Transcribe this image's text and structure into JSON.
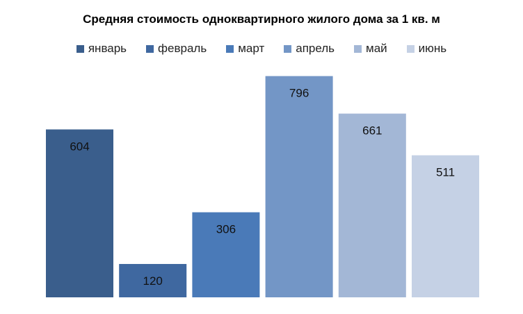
{
  "chart_data": {
    "type": "bar",
    "title": "Средняя стоимость одноквартирного  жилого дома за 1 кв. м",
    "series": [
      {
        "name": "январь",
        "value": 604,
        "color": "#3A5E8C"
      },
      {
        "name": "февраль",
        "value": 120,
        "color": "#3F68A0"
      },
      {
        "name": "март",
        "value": 306,
        "color": "#4A7AB8"
      },
      {
        "name": "апрель",
        "value": 796,
        "color": "#7396C6"
      },
      {
        "name": "май",
        "value": 661,
        "color": "#A3B7D6"
      },
      {
        "name": "июнь",
        "value": 511,
        "color": "#C5D1E5"
      }
    ],
    "ylim": [
      0,
      900
    ],
    "xlabel": "",
    "ylabel": "",
    "grid": false,
    "legend": "top"
  }
}
